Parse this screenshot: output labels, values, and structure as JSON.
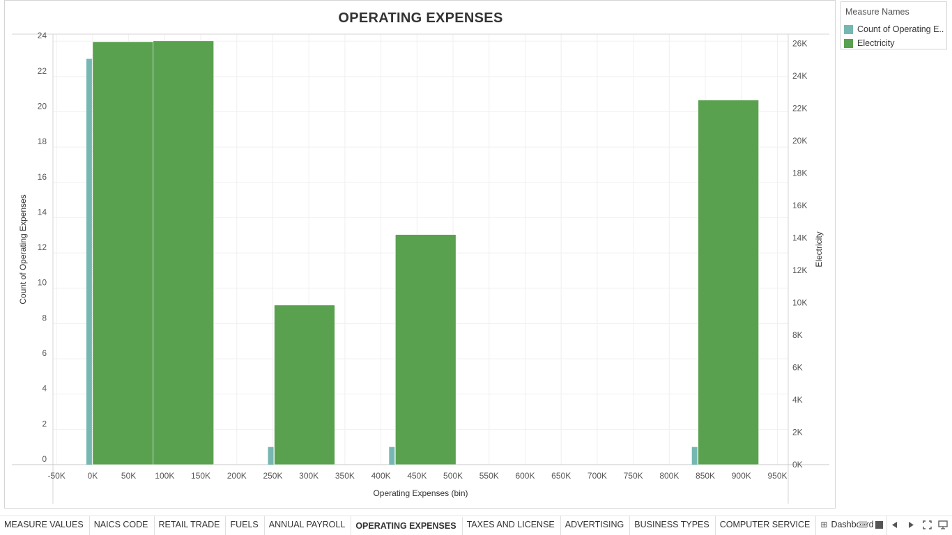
{
  "title": "OPERATING EXPENSES",
  "legend": {
    "title": "Measure Names",
    "items": [
      {
        "label": "Count of Operating E..",
        "color": "#76b7b2"
      },
      {
        "label": "Electricity",
        "color": "#59a14f"
      }
    ]
  },
  "tabs": [
    {
      "label": "MEASURE VALUES",
      "active": false
    },
    {
      "label": "NAICS CODE",
      "active": false
    },
    {
      "label": "RETAIL TRADE",
      "active": false
    },
    {
      "label": "FUELS",
      "active": false
    },
    {
      "label": "ANNUAL PAYROLL",
      "active": false
    },
    {
      "label": "OPERATING EXPENSES",
      "active": true
    },
    {
      "label": "TAXES AND LICENSE",
      "active": false
    },
    {
      "label": "ADVERTISING",
      "active": false
    },
    {
      "label": "BUSINESS TYPES",
      "active": false
    },
    {
      "label": "COMPUTER SERVICE",
      "active": false
    },
    {
      "label": "Dashboard 1",
      "active": false,
      "icon": "dashboard-icon"
    }
  ],
  "nav_icons": [
    "grid-view-icon",
    "stop-icon",
    "prev-arrow-icon",
    "next-arrow-icon",
    "fullscreen-icon",
    "presentation-icon"
  ],
  "chart_data": {
    "type": "bar",
    "title": "OPERATING EXPENSES",
    "xlabel": "Operating Expenses (bin)",
    "ylabel_left": "Count of Operating Expenses",
    "ylabel_right": "Electricity",
    "x_ticks": [
      "-50K",
      "0K",
      "50K",
      "100K",
      "150K",
      "200K",
      "250K",
      "300K",
      "350K",
      "400K",
      "450K",
      "500K",
      "550K",
      "600K",
      "650K",
      "700K",
      "750K",
      "800K",
      "850K",
      "900K",
      "950K"
    ],
    "xlim": [
      -55000,
      965000
    ],
    "ylim_left": [
      0,
      24.4
    ],
    "y_ticks_left": [
      0,
      2,
      4,
      6,
      8,
      10,
      12,
      14,
      16,
      18,
      20,
      22,
      24
    ],
    "ylim_right": [
      0,
      26570
    ],
    "y_ticks_right": [
      "0K",
      "2K",
      "4K",
      "6K",
      "8K",
      "10K",
      "12K",
      "14K",
      "16K",
      "18K",
      "20K",
      "22K",
      "24K",
      "26K"
    ],
    "y_ticks_right_values": [
      0,
      2000,
      4000,
      6000,
      8000,
      10000,
      12000,
      14000,
      16000,
      18000,
      20000,
      22000,
      24000,
      26000
    ],
    "bin_size": 84000,
    "grid": true,
    "legend_position": "right",
    "series": [
      {
        "name": "Count of Operating Expenses",
        "axis": "left",
        "color": "#76b7b2",
        "bins": [
          0,
          252000,
          420000,
          840000
        ],
        "values": [
          23,
          1,
          1,
          1
        ]
      },
      {
        "name": "Electricity",
        "axis": "right",
        "color": "#59a14f",
        "bins": [
          0,
          84000,
          252000,
          420000,
          840000
        ],
        "values": [
          26100,
          26150,
          9850,
          14200,
          22500
        ]
      }
    ]
  }
}
